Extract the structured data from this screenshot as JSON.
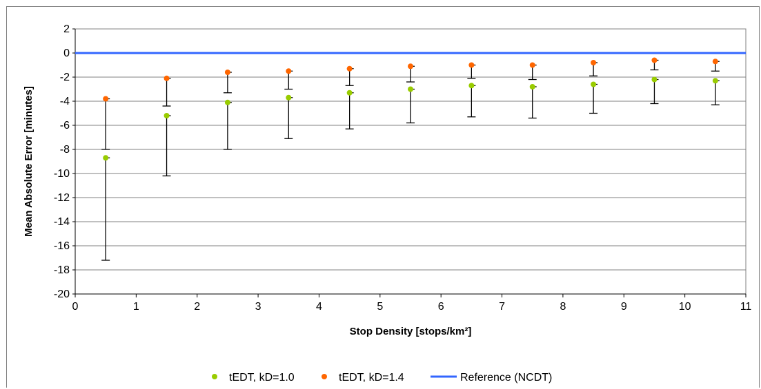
{
  "chart_data": {
    "type": "scatter",
    "title": "",
    "xlabel": "Stop Density [stops/km²]",
    "ylabel": "Mean Absolute Error [minutes]",
    "xlim": [
      0,
      11
    ],
    "ylim": [
      -20,
      2
    ],
    "x_ticks": [
      "0",
      "1",
      "2",
      "3",
      "4",
      "5",
      "6",
      "7",
      "8",
      "9",
      "10",
      "11"
    ],
    "y_ticks": [
      "2",
      "0",
      "-2",
      "-4",
      "-6",
      "-8",
      "-10",
      "-12",
      "-14",
      "-16",
      "-18",
      "-20"
    ],
    "grid": "horizontal",
    "legend_position": "bottom",
    "series": [
      {
        "name": "tEDT, kD=1.0",
        "color": "#99cc00",
        "marker": "circle",
        "x": [
          0.5,
          1.5,
          2.5,
          3.5,
          4.5,
          5.5,
          6.5,
          7.5,
          8.5,
          9.5,
          10.5
        ],
        "y": [
          -8.7,
          -5.2,
          -4.1,
          -3.7,
          -3.3,
          -3.0,
          -2.7,
          -2.8,
          -2.6,
          -2.2,
          -2.3
        ],
        "error_low": [
          -17.2,
          -10.2,
          -8.0,
          -7.1,
          -6.3,
          -5.8,
          -5.3,
          -5.4,
          -5.0,
          -4.2,
          -4.3
        ]
      },
      {
        "name": "tEDT, kD=1.4",
        "color": "#ff6600",
        "marker": "circle",
        "x": [
          0.5,
          1.5,
          2.5,
          3.5,
          4.5,
          5.5,
          6.5,
          7.5,
          8.5,
          9.5,
          10.5
        ],
        "y": [
          -3.8,
          -2.1,
          -1.6,
          -1.5,
          -1.3,
          -1.1,
          -1.0,
          -1.0,
          -0.8,
          -0.6,
          -0.7
        ],
        "error_low": [
          -8.0,
          -4.4,
          -3.3,
          -3.0,
          -2.7,
          -2.4,
          -2.1,
          -2.2,
          -1.9,
          -1.4,
          -1.5
        ]
      },
      {
        "name": "Reference (NCDT)",
        "color": "#3366ff",
        "marker": "line",
        "x": [
          0,
          11
        ],
        "y": [
          0,
          0
        ]
      }
    ]
  }
}
